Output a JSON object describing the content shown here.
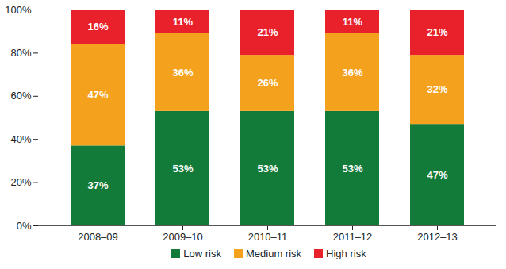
{
  "chart_data": {
    "type": "bar",
    "stacked": true,
    "data_labels": true,
    "grid": false,
    "legend": "bottom",
    "categories": [
      "2008–09",
      "2009–10",
      "2010–11",
      "2011–12",
      "2012–13"
    ],
    "series": [
      {
        "name": "Low risk",
        "color": "#137b3a",
        "values": [
          37,
          53,
          53,
          53,
          47
        ],
        "value_labels": [
          "37%",
          "53%",
          "53%",
          "53%",
          "47%"
        ]
      },
      {
        "name": "Medium risk",
        "color": "#f4a11d",
        "values": [
          47,
          36,
          26,
          36,
          32
        ],
        "value_labels": [
          "47%",
          "36%",
          "26%",
          "36%",
          "32%"
        ]
      },
      {
        "name": "High risk",
        "color": "#e8212b",
        "values": [
          16,
          11,
          21,
          11,
          21
        ],
        "value_labels": [
          "16%",
          "11%",
          "21%",
          "11%",
          "21%"
        ]
      }
    ],
    "ylim": [
      0,
      100
    ],
    "yticks": [
      {
        "value": 0,
        "label": "0%"
      },
      {
        "value": 20,
        "label": "20%"
      },
      {
        "value": 40,
        "label": "40%"
      },
      {
        "value": 60,
        "label": "60%"
      },
      {
        "value": 80,
        "label": "80%"
      },
      {
        "value": 100,
        "label": "100%"
      }
    ]
  }
}
